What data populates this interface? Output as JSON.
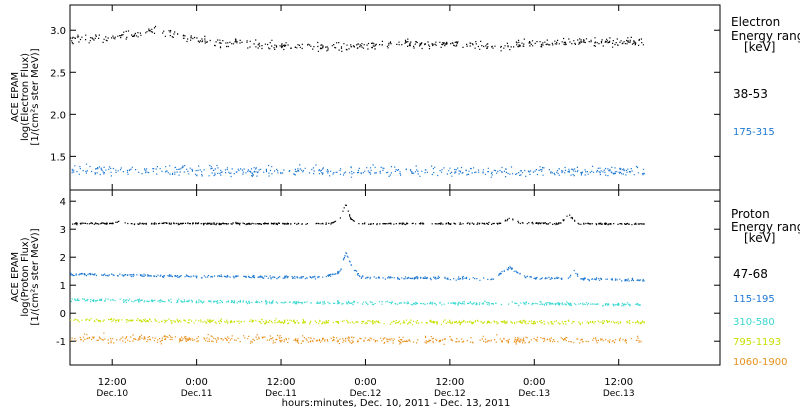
{
  "chart_data": [
    {
      "type": "scatter",
      "ylabel_lines": [
        "ACE EPAM",
        "log(Electron Flux)",
        "[1/(cm²s ster MeV)]"
      ],
      "yticks": [
        "1.5",
        "2.0",
        "2.5",
        "3.0"
      ],
      "ylim": [
        1.1,
        3.3
      ],
      "legend_title": [
        "Electron",
        "Energy ranges",
        "[keV]"
      ],
      "series": [
        {
          "name": "38-53",
          "color": "#000000",
          "level": [
            [
              0.0,
              2.9
            ],
            [
              0.3,
              2.93
            ],
            [
              0.5,
              3.0
            ],
            [
              0.8,
              2.87
            ],
            [
              1.2,
              2.82
            ],
            [
              1.6,
              2.8
            ],
            [
              2.0,
              2.85
            ],
            [
              2.5,
              2.82
            ],
            [
              3.0,
              2.88
            ],
            [
              3.4,
              2.86
            ]
          ],
          "noise": 0.05
        },
        {
          "name": "175-315",
          "color": "#1e78d2",
          "level": [
            [
              0.0,
              1.34
            ],
            [
              1.0,
              1.33
            ],
            [
              2.0,
              1.33
            ],
            [
              3.0,
              1.33
            ],
            [
              3.4,
              1.33
            ]
          ],
          "noise": 0.06
        }
      ]
    },
    {
      "type": "scatter",
      "ylabel_lines": [
        "ACE EPAM",
        "log(Proton Flux)",
        "[1/(cm²s ster MeV)]"
      ],
      "yticks": [
        "-1",
        "0",
        "1",
        "2",
        "3",
        "4"
      ],
      "ylim": [
        -1.85,
        4.4
      ],
      "legend_title": [
        "Proton",
        "Energy ranges",
        "[keV]"
      ],
      "series": [
        {
          "name": "47-68",
          "color": "#000000",
          "level": [
            [
              0.0,
              3.22
            ],
            [
              0.25,
              3.22
            ],
            [
              0.3,
              3.33
            ],
            [
              0.35,
              3.22
            ],
            [
              1.55,
              3.22
            ],
            [
              1.6,
              3.45
            ],
            [
              1.63,
              3.9
            ],
            [
              1.66,
              3.4
            ],
            [
              1.7,
              3.22
            ],
            [
              2.55,
              3.22
            ],
            [
              2.6,
              3.42
            ],
            [
              2.66,
              3.25
            ],
            [
              2.9,
              3.22
            ],
            [
              2.95,
              3.55
            ],
            [
              3.0,
              3.22
            ],
            [
              3.4,
              3.2
            ]
          ],
          "noise": 0.03
        },
        {
          "name": "115-195",
          "color": "#1e78d2",
          "level": [
            [
              0.0,
              1.42
            ],
            [
              0.5,
              1.35
            ],
            [
              1.5,
              1.3
            ],
            [
              1.6,
              1.5
            ],
            [
              1.63,
              2.2
            ],
            [
              1.67,
              1.6
            ],
            [
              1.72,
              1.3
            ],
            [
              2.5,
              1.25
            ],
            [
              2.6,
              1.65
            ],
            [
              2.7,
              1.3
            ],
            [
              2.95,
              1.25
            ],
            [
              2.98,
              1.55
            ],
            [
              3.02,
              1.25
            ],
            [
              3.4,
              1.2
            ]
          ],
          "noise": 0.05
        },
        {
          "name": "310-580",
          "color": "#3ad8d0",
          "level": [
            [
              0.0,
              0.5
            ],
            [
              1.0,
              0.42
            ],
            [
              2.0,
              0.38
            ],
            [
              3.0,
              0.35
            ],
            [
              3.4,
              0.33
            ]
          ],
          "noise": 0.06
        },
        {
          "name": "795-1193",
          "color": "#c8e000",
          "level": [
            [
              0.0,
              -0.22
            ],
            [
              1.0,
              -0.28
            ],
            [
              2.0,
              -0.3
            ],
            [
              3.0,
              -0.3
            ],
            [
              3.4,
              -0.3
            ]
          ],
          "noise": 0.07
        },
        {
          "name": "1060-1900",
          "color": "#e8901c",
          "level": [
            [
              0.0,
              -0.88
            ],
            [
              1.0,
              -0.9
            ],
            [
              2.0,
              -0.95
            ],
            [
              3.0,
              -0.95
            ],
            [
              3.4,
              -0.95
            ]
          ],
          "noise": 0.13
        }
      ]
    }
  ],
  "xaxis": {
    "xlim_days": [
      0.0,
      3.85
    ],
    "data_end_days": 3.4,
    "ticks": [
      {
        "t": 0.25,
        "time": "12:00",
        "date": "Dec.10"
      },
      {
        "t": 0.75,
        "time": "0:00",
        "date": "Dec.11"
      },
      {
        "t": 1.25,
        "time": "12:00",
        "date": "Dec.11"
      },
      {
        "t": 1.75,
        "time": "0:00",
        "date": "Dec.12"
      },
      {
        "t": 2.25,
        "time": "12:00",
        "date": "Dec.12"
      },
      {
        "t": 2.75,
        "time": "0:00",
        "date": "Dec.13"
      },
      {
        "t": 3.25,
        "time": "12:00",
        "date": "Dec.13"
      }
    ],
    "xlabel": "hours:minutes, Dec. 10, 2011 - Dec. 13, 2011"
  }
}
